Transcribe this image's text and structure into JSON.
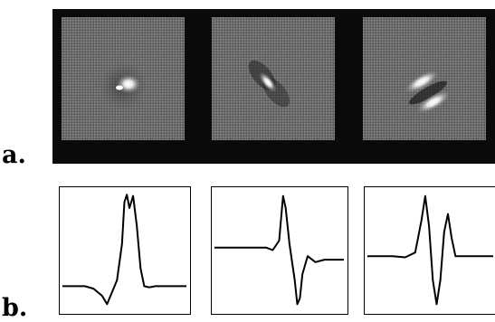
{
  "panels": {
    "a_label": "a.",
    "b_label": "b."
  },
  "receptive_fields": [
    {
      "pattern": "center-surround"
    },
    {
      "pattern": "oriented-bar"
    },
    {
      "pattern": "two-lobe"
    }
  ],
  "profiles": [
    {
      "baseline": 0.2,
      "points": [
        [
          0,
          0.2
        ],
        [
          0.18,
          0.2
        ],
        [
          0.25,
          0.18
        ],
        [
          0.32,
          0.12
        ],
        [
          0.36,
          0.05
        ],
        [
          0.4,
          0.15
        ],
        [
          0.44,
          0.25
        ],
        [
          0.48,
          0.55
        ],
        [
          0.5,
          0.9
        ],
        [
          0.52,
          0.96
        ],
        [
          0.54,
          0.85
        ],
        [
          0.57,
          0.95
        ],
        [
          0.6,
          0.7
        ],
        [
          0.63,
          0.35
        ],
        [
          0.66,
          0.2
        ],
        [
          0.7,
          0.19
        ],
        [
          0.75,
          0.2
        ],
        [
          1,
          0.2
        ]
      ]
    },
    {
      "baseline": 0.5,
      "points": [
        [
          0,
          0.52
        ],
        [
          0.3,
          0.52
        ],
        [
          0.4,
          0.52
        ],
        [
          0.45,
          0.5
        ],
        [
          0.5,
          0.58
        ],
        [
          0.53,
          0.95
        ],
        [
          0.55,
          0.85
        ],
        [
          0.58,
          0.55
        ],
        [
          0.62,
          0.25
        ],
        [
          0.64,
          0.05
        ],
        [
          0.66,
          0.1
        ],
        [
          0.68,
          0.3
        ],
        [
          0.72,
          0.45
        ],
        [
          0.78,
          0.4
        ],
        [
          0.85,
          0.42
        ],
        [
          1,
          0.42
        ]
      ]
    },
    {
      "baseline": 0.45,
      "points": [
        [
          0,
          0.45
        ],
        [
          0.2,
          0.45
        ],
        [
          0.3,
          0.44
        ],
        [
          0.38,
          0.48
        ],
        [
          0.43,
          0.75
        ],
        [
          0.46,
          0.95
        ],
        [
          0.49,
          0.7
        ],
        [
          0.52,
          0.25
        ],
        [
          0.55,
          0.05
        ],
        [
          0.58,
          0.25
        ],
        [
          0.61,
          0.65
        ],
        [
          0.64,
          0.8
        ],
        [
          0.67,
          0.6
        ],
        [
          0.7,
          0.45
        ],
        [
          0.8,
          0.45
        ],
        [
          1,
          0.45
        ]
      ]
    }
  ]
}
